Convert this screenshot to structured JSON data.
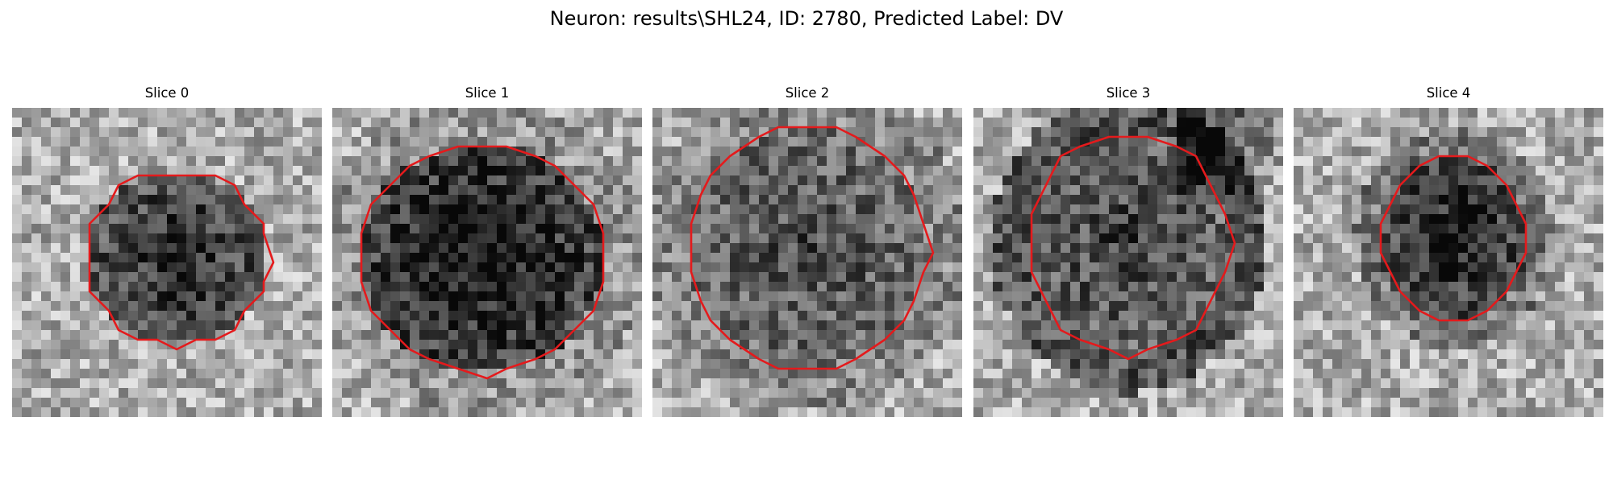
{
  "title": "Neuron: results\\SHL24, ID: 2780, Predicted Label: DV",
  "contour_color": "#e41a1c",
  "panels": [
    {
      "label": "Slice 0",
      "seed": 11,
      "center_dark": 0.55,
      "side_dark": 0.0,
      "corner_dark": 0.0
    },
    {
      "label": "Slice 1",
      "seed": 23,
      "center_dark": 0.65,
      "side_dark": 0.1,
      "corner_dark": 0.0
    },
    {
      "label": "Slice 2",
      "seed": 37,
      "center_dark": 0.4,
      "side_dark": 0.15,
      "corner_dark": 0.0
    },
    {
      "label": "Slice 3",
      "seed": 41,
      "center_dark": 0.45,
      "side_dark": 0.35,
      "corner_dark": 0.45
    },
    {
      "label": "Slice 4",
      "seed": 59,
      "center_dark": 0.6,
      "side_dark": 0.2,
      "corner_dark": 0.0
    }
  ]
}
